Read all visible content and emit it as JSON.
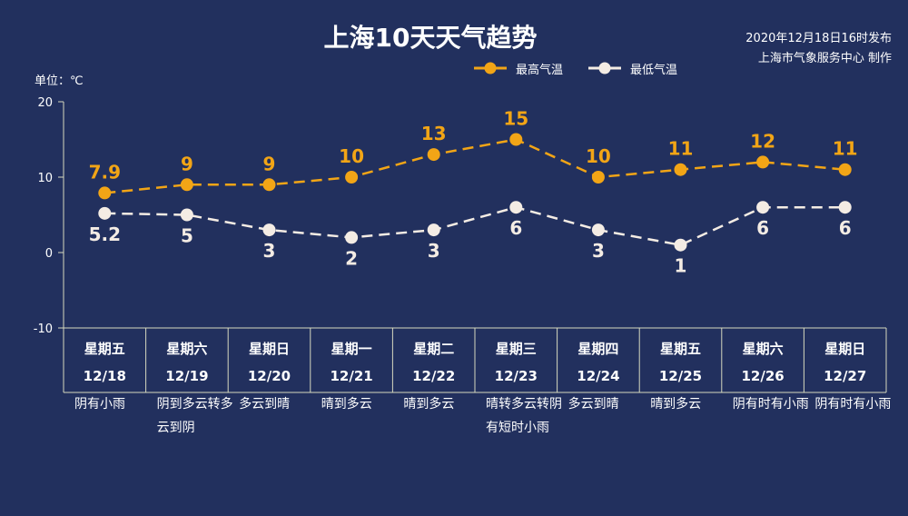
{
  "header": {
    "title": "上海10天天气趋势",
    "issue_time": "2020年12月18日16时发布",
    "producer": "上海市气象服务中心 制作",
    "unit": "单位：℃"
  },
  "colors": {
    "background": "#22305e",
    "high": "#f2a516",
    "low": "#f4ece4",
    "axis": "#d6d9bf"
  },
  "chart_data": {
    "type": "line",
    "categories": [
      "12/18",
      "12/19",
      "12/20",
      "12/21",
      "12/22",
      "12/23",
      "12/24",
      "12/25",
      "12/26",
      "12/27"
    ],
    "weekdays": [
      "星期五",
      "星期六",
      "星期日",
      "星期一",
      "星期二",
      "星期三",
      "星期四",
      "星期五",
      "星期六",
      "星期日"
    ],
    "series": [
      {
        "name": "最高气温",
        "values": [
          7.9,
          9,
          9,
          10,
          13,
          15,
          10,
          11,
          12,
          11
        ],
        "color": "#f2a516",
        "style": "dashed"
      },
      {
        "name": "最低气温",
        "values": [
          5.2,
          5,
          3,
          2,
          3,
          6,
          3,
          1,
          6,
          6
        ],
        "color": "#f4ece4",
        "style": "dashed"
      }
    ],
    "ylim": [
      -10,
      20
    ],
    "yticks": [
      -10,
      0,
      10,
      20
    ],
    "legend_position": "top-right",
    "grid": false,
    "weather": [
      "阴有小雨",
      "阴到多云转多云到阴",
      "多云到晴",
      "晴到多云",
      "晴到多云",
      "晴转多云转阴有短时小雨",
      "多云到晴",
      "晴到多云",
      "阴有时有小雨",
      "阴有时有小雨"
    ]
  }
}
